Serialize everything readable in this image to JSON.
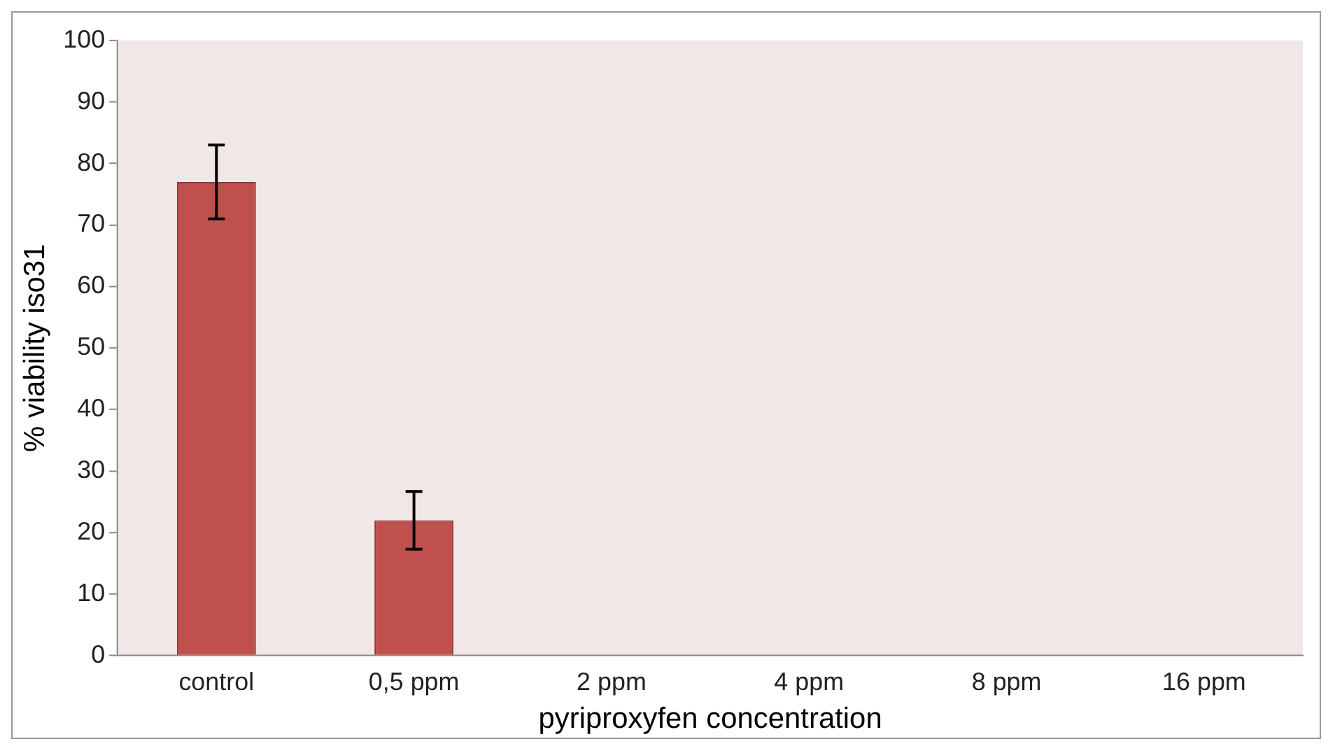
{
  "chart_data": {
    "type": "bar",
    "xlabel": "pyriproxyfen concentration",
    "ylabel": "% viability iso31",
    "categories": [
      "control",
      "0,5 ppm",
      "2 ppm",
      "4 ppm",
      "8 ppm",
      "16 ppm"
    ],
    "values": [
      77,
      22,
      0,
      0,
      0,
      0
    ],
    "errors": [
      6,
      4.7,
      null,
      null,
      null,
      null
    ],
    "color": "#c0504d",
    "ylim": [
      0,
      100
    ],
    "yticks": [
      0,
      10,
      20,
      30,
      40,
      50,
      60,
      70,
      80,
      90,
      100
    ],
    "grid": false,
    "legend": false
  }
}
